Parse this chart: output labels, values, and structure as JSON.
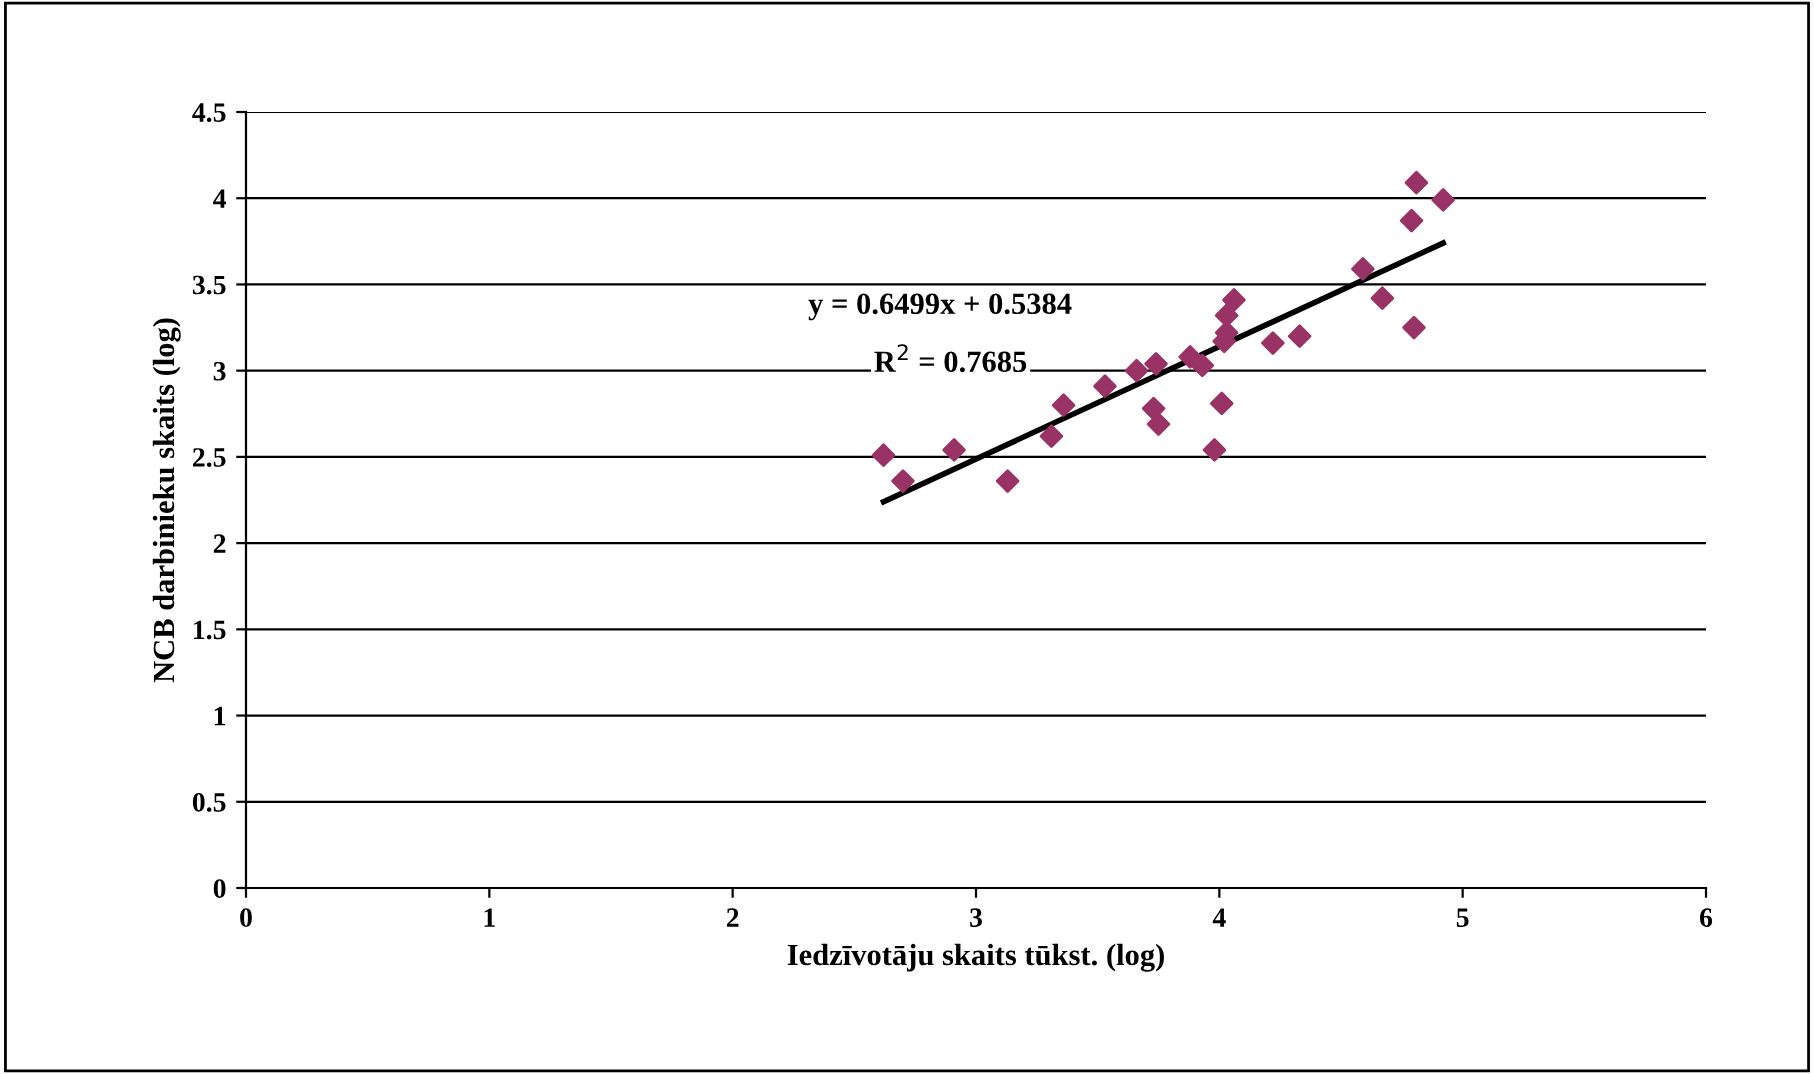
{
  "chart_data": {
    "type": "scatter",
    "xlabel": "Iedzīvotāju skaits tūkst. (log)",
    "ylabel": "NCB darbinieku skaits (log)",
    "series": [
      {
        "color": "#993366",
        "marker": "diamond",
        "x": [
          2.62,
          2.7,
          2.91,
          3.13,
          3.31,
          3.36,
          3.53,
          3.66,
          3.74,
          3.73,
          3.75,
          3.88,
          3.93,
          3.98,
          4.01,
          4.02,
          4.03,
          4.03,
          4.06,
          4.22,
          4.33,
          4.59,
          4.67,
          4.8,
          4.79,
          4.81,
          4.92
        ],
        "values": [
          2.51,
          2.36,
          2.54,
          2.36,
          2.62,
          2.8,
          2.91,
          3.0,
          3.04,
          2.78,
          2.69,
          3.08,
          3.03,
          2.54,
          2.81,
          3.17,
          3.22,
          3.32,
          3.41,
          3.16,
          3.2,
          3.59,
          3.42,
          3.25,
          3.87,
          4.09,
          3.99
        ]
      },
      {
        "type": "line",
        "color": "#000000",
        "marker": "none",
        "x": [
          2.62,
          4.92
        ],
        "values": [
          2.24,
          3.74
        ]
      }
    ],
    "annotations": [
      "y = 0.6499x + 0.5384",
      "R$^{2}$ = 0.7685"
    ],
    "xlim": [
      0,
      6
    ],
    "xticks": [
      0,
      1,
      2,
      3,
      4,
      5,
      6
    ],
    "ylim": [
      0,
      4.5
    ],
    "yticks": [
      0,
      0.5,
      1,
      1.5,
      2,
      2.5,
      3,
      3.5,
      4,
      4.5
    ],
    "grid": "y"
  }
}
